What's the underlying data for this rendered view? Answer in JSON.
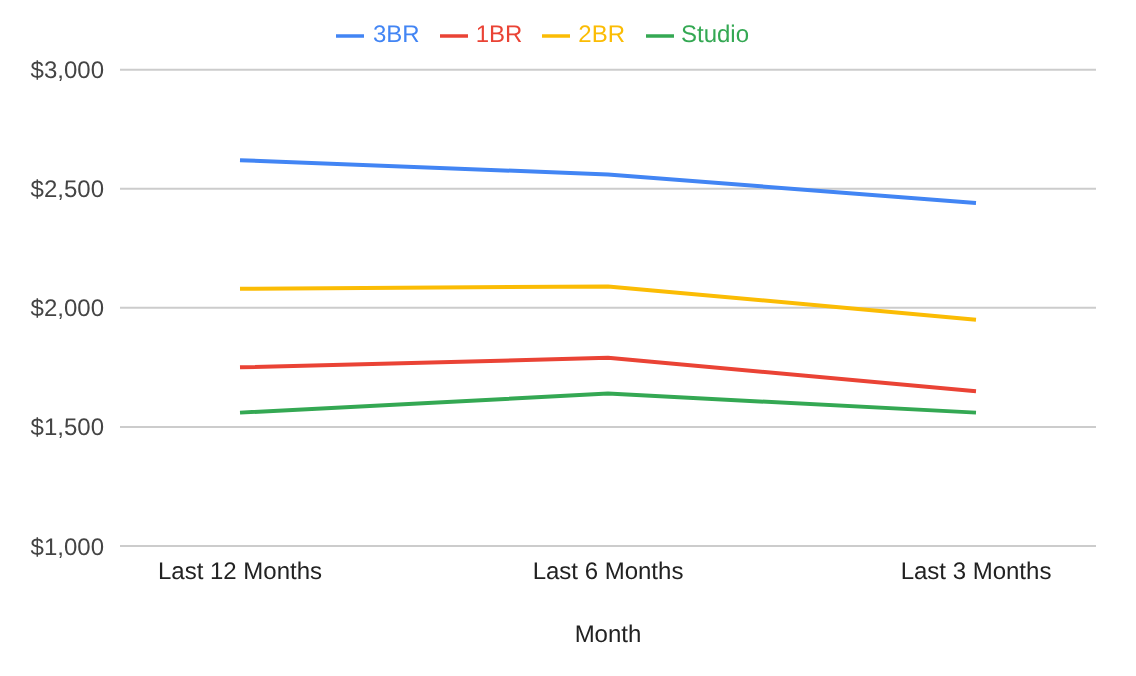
{
  "chart_data": {
    "type": "line",
    "xlabel": "Month",
    "categories": [
      "Last 12 Months",
      "Last 6 Months",
      "Last 3 Months"
    ],
    "series": [
      {
        "name": "3BR",
        "color": "#4285f4",
        "values": [
          2620,
          2560,
          2440
        ]
      },
      {
        "name": "1BR",
        "color": "#ea4335",
        "values": [
          1750,
          1790,
          1650
        ]
      },
      {
        "name": "2BR",
        "color": "#fbbc04",
        "values": [
          2080,
          2090,
          1950
        ]
      },
      {
        "name": "Studio",
        "color": "#34a853",
        "values": [
          1560,
          1640,
          1560
        ]
      }
    ],
    "ylim": [
      1000,
      3000
    ],
    "yticks": [
      {
        "value": 1000,
        "label": "$1,000"
      },
      {
        "value": 1500,
        "label": "$1,500"
      },
      {
        "value": 2000,
        "label": "$2,000"
      },
      {
        "value": 2500,
        "label": "$2,500"
      },
      {
        "value": 3000,
        "label": "$3,000"
      }
    ],
    "grid": "y",
    "legend": "top",
    "marker": "none",
    "line_style": "solid"
  }
}
